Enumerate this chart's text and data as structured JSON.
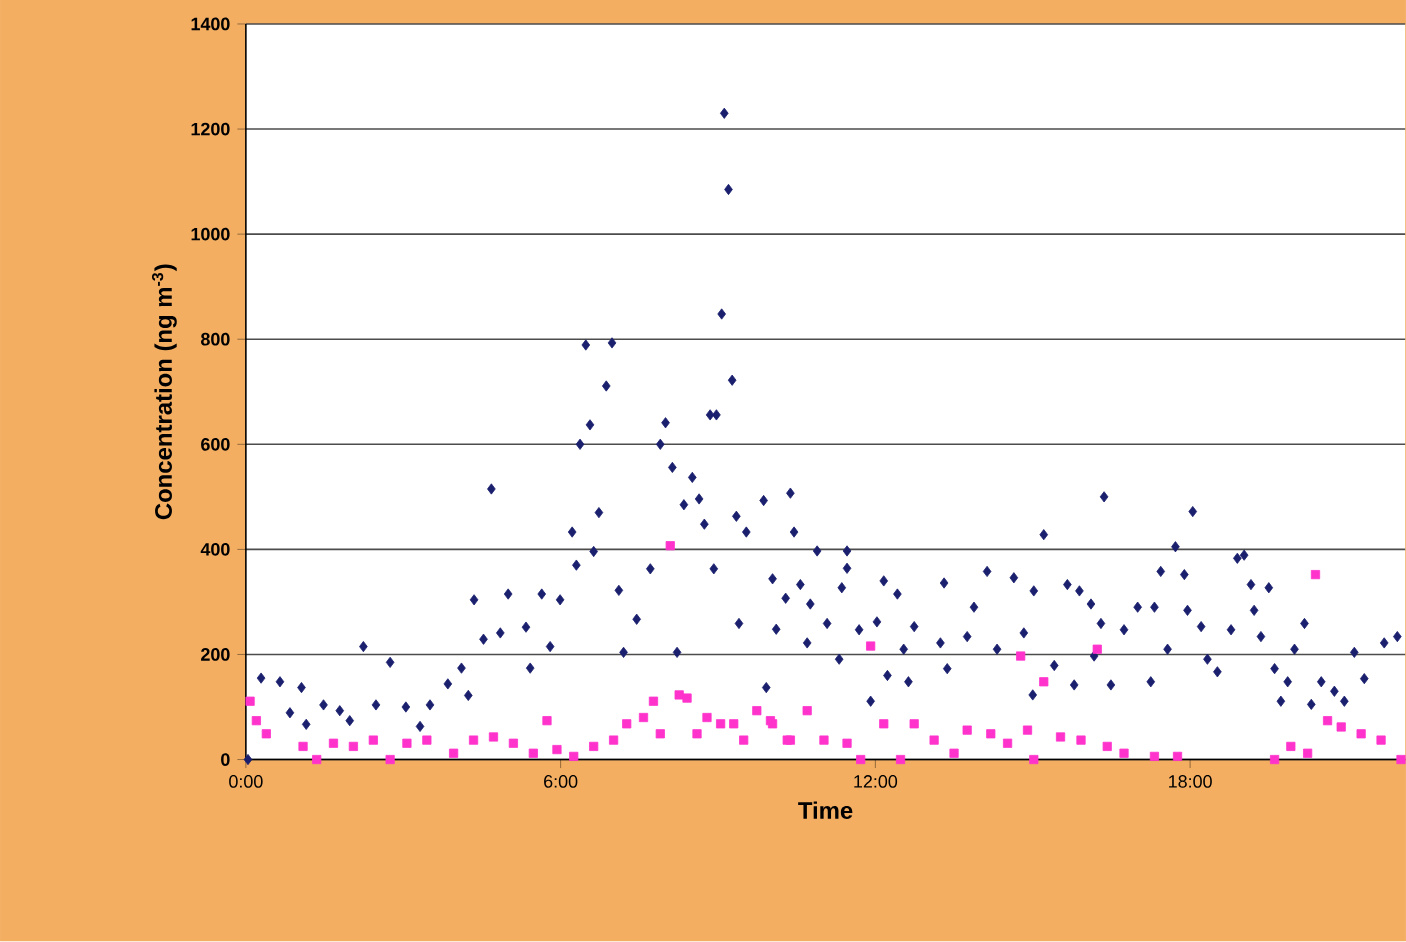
{
  "chart_data": {
    "type": "scatter",
    "xlabel": "Time",
    "ylabel": "Concentration (ng m$^{-3}$)",
    "xlim": [
      0,
      22.1
    ],
    "xticks": [
      {
        "value": 0,
        "label": "0:00"
      },
      {
        "value": 6,
        "label": "6:00"
      },
      {
        "value": 12,
        "label": "12:00"
      },
      {
        "value": 18,
        "label": "18:00"
      }
    ],
    "ylim": [
      0,
      1400
    ],
    "yticks": [
      0,
      200,
      400,
      600,
      800,
      1000,
      1200,
      1400
    ],
    "grid": "y",
    "series": [
      {
        "color": "#1a1f6e",
        "marker": "diamond",
        "x": [
          0.04,
          0.29,
          0.65,
          0.84,
          1.06,
          1.15,
          1.48,
          1.79,
          1.98,
          2.24,
          2.75,
          2.48,
          3.05,
          3.32,
          3.51,
          3.85,
          4.11,
          4.24,
          4.35,
          4.68,
          4.53,
          5.0,
          4.85,
          5.34,
          5.42,
          5.64,
          5.8,
          5.99,
          6.22,
          6.3,
          6.37,
          6.48,
          6.56,
          6.73,
          6.87,
          6.98,
          6.63,
          7.11,
          7.2,
          7.45,
          7.71,
          7.9,
          8.0,
          8.13,
          8.22,
          8.35,
          8.51,
          8.64,
          8.74,
          8.92,
          8.85,
          8.97,
          9.07,
          9.12,
          9.2,
          9.27,
          9.4,
          9.35,
          9.54,
          9.87,
          9.92,
          10.04,
          10.11,
          10.29,
          10.38,
          10.45,
          10.89,
          11.46,
          11.46,
          11.36,
          10.57,
          10.76,
          11.08,
          10.7,
          11.31,
          11.69,
          11.91,
          12.03,
          12.16,
          12.42,
          12.23,
          12.63,
          12.74,
          12.54,
          13.24,
          13.31,
          13.88,
          13.37,
          13.75,
          14.13,
          14.32,
          14.64,
          14.83,
          15.02,
          15.21,
          15.0,
          15.41,
          15.66,
          15.79,
          15.89,
          16.11,
          16.17,
          16.36,
          16.3,
          16.49,
          16.74,
          17.0,
          17.25,
          17.32,
          17.44,
          17.57,
          17.72,
          17.89,
          17.95,
          18.05,
          18.21,
          18.33,
          18.52,
          18.78,
          18.9,
          19.03,
          19.16,
          19.22,
          19.35,
          19.5,
          19.61,
          19.73,
          19.86,
          19.99,
          20.18,
          20.31,
          20.5,
          20.75,
          20.94,
          21.13,
          21.32,
          21.7,
          21.95
        ],
        "values": [
          0,
          155,
          148,
          89,
          137,
          67,
          104,
          93,
          74,
          215,
          185,
          104,
          100,
          63,
          104,
          144,
          174,
          122,
          304,
          515,
          229,
          315,
          241,
          252,
          174,
          315,
          215,
          304,
          433,
          370,
          600,
          789,
          637,
          470,
          711,
          793,
          396,
          322,
          204,
          267,
          363,
          600,
          641,
          556,
          204,
          485,
          537,
          496,
          448,
          363,
          656,
          656,
          848,
          1230,
          1085,
          722,
          259,
          463,
          433,
          493,
          137,
          344,
          248,
          307,
          507,
          433,
          397,
          397,
          364,
          327,
          333,
          296,
          259,
          222,
          191,
          247,
          111,
          262,
          340,
          315,
          160,
          148,
          253,
          210,
          222,
          336,
          290,
          173,
          234,
          358,
          210,
          346,
          241,
          321,
          428,
          123,
          179,
          333,
          142,
          321,
          296,
          197,
          500,
          259,
          142,
          247,
          290,
          148,
          290,
          358,
          210,
          405,
          352,
          284,
          472,
          253,
          191,
          167,
          247,
          383,
          389,
          333,
          284,
          234,
          327,
          173,
          111,
          148,
          210,
          259,
          105,
          148,
          130,
          111,
          204,
          154,
          222,
          234
        ]
      },
      {
        "color": "#ff33cc",
        "marker": "square",
        "x": [
          0.08,
          0.2,
          0.39,
          1.09,
          1.35,
          1.67,
          2.05,
          2.43,
          2.75,
          3.07,
          3.45,
          3.96,
          4.34,
          4.72,
          5.1,
          5.48,
          5.74,
          5.93,
          6.25,
          6.63,
          7.01,
          7.26,
          7.58,
          7.77,
          7.9,
          8.09,
          8.26,
          8.41,
          8.6,
          8.79,
          9.05,
          9.3,
          9.49,
          9.74,
          10.04,
          10.32,
          10.0,
          10.38,
          10.7,
          11.02,
          11.46,
          11.72,
          11.91,
          12.16,
          12.48,
          12.74,
          13.12,
          13.5,
          13.75,
          14.2,
          14.52,
          14.77,
          14.9,
          15.02,
          15.21,
          15.53,
          15.92,
          16.23,
          16.42,
          16.74,
          17.32,
          17.76,
          19.61,
          19.92,
          20.24,
          20.39,
          20.62,
          20.88,
          21.26,
          21.64,
          22.02
        ],
        "values": [
          111,
          74,
          49,
          25,
          0,
          31,
          25,
          37,
          0,
          31,
          37,
          12,
          37,
          43,
          31,
          12,
          74,
          19,
          6,
          25,
          37,
          68,
          80,
          111,
          49,
          407,
          123,
          117,
          49,
          80,
          68,
          68,
          37,
          93,
          68,
          37,
          74,
          37,
          93,
          37,
          31,
          0,
          216,
          68,
          0,
          68,
          37,
          12,
          56,
          49,
          31,
          197,
          56,
          0,
          148,
          43,
          37,
          210,
          25,
          12,
          6,
          6,
          0,
          25,
          12,
          352,
          74,
          62,
          49,
          37,
          0
        ]
      }
    ]
  }
}
